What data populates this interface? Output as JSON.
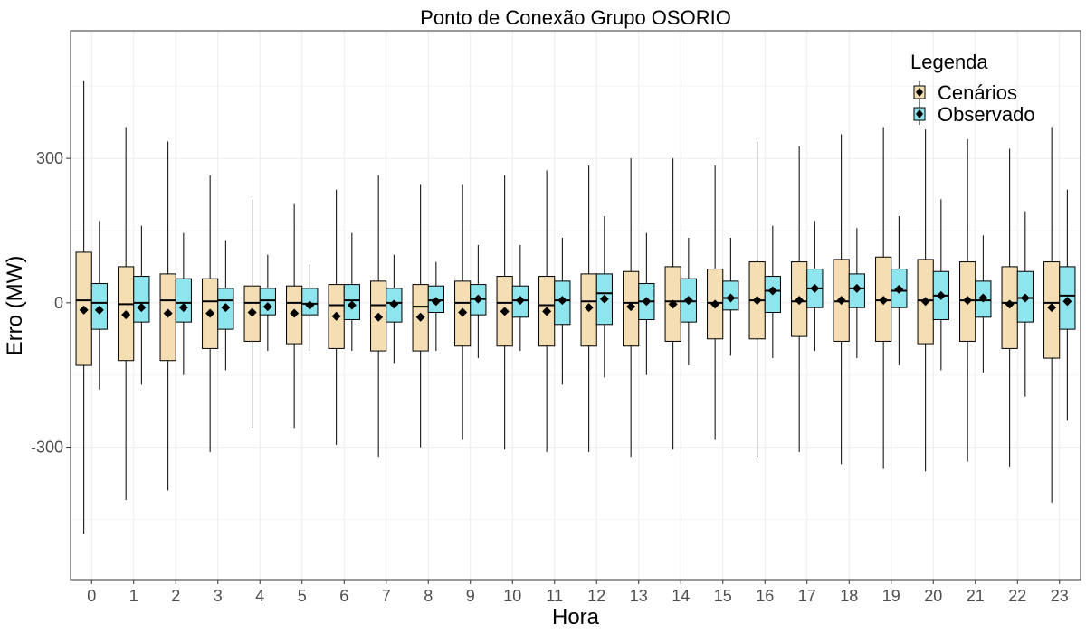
{
  "colors": {
    "Cenários": "#F5DEB3",
    "Observado": "#8EE5EE",
    "grid_major": "#ebebeb",
    "grid_minor": "#f5f5f5",
    "panel_border": "#333333"
  },
  "chart_data": {
    "type": "boxplot",
    "title": "Ponto de Conexão Grupo OSORIO",
    "xlabel": "Hora",
    "ylabel": "Erro (MW)",
    "ylim": [
      -575,
      565
    ],
    "yticks": [
      -300,
      0,
      300
    ],
    "grid": true,
    "legend": {
      "title": "Legenda",
      "position": "top-right",
      "entries": [
        "Cenários",
        "Observado"
      ]
    },
    "categories": [
      "0",
      "1",
      "2",
      "3",
      "4",
      "5",
      "6",
      "7",
      "8",
      "9",
      "10",
      "11",
      "12",
      "13",
      "14",
      "15",
      "16",
      "17",
      "18",
      "19",
      "20",
      "21",
      "22",
      "23"
    ],
    "series": [
      {
        "name": "Cenários",
        "whisker_low": [
          -480,
          -410,
          -390,
          -310,
          -260,
          -260,
          -295,
          -320,
          -300,
          -285,
          -305,
          -310,
          -310,
          -320,
          -305,
          -285,
          -320,
          -310,
          -335,
          -345,
          -350,
          -330,
          -340,
          -415
        ],
        "q1": [
          -130,
          -120,
          -120,
          -95,
          -80,
          -85,
          -95,
          -100,
          -100,
          -90,
          -90,
          -90,
          -90,
          -90,
          -80,
          -75,
          -75,
          -70,
          -80,
          -80,
          -85,
          -80,
          -95,
          -115
        ],
        "median": [
          5,
          -3,
          5,
          3,
          0,
          0,
          -5,
          -5,
          -8,
          0,
          0,
          -5,
          3,
          0,
          3,
          0,
          5,
          3,
          3,
          5,
          5,
          5,
          0,
          0
        ],
        "q3": [
          105,
          75,
          60,
          50,
          35,
          35,
          38,
          45,
          38,
          45,
          55,
          55,
          60,
          65,
          75,
          70,
          85,
          85,
          90,
          95,
          90,
          85,
          75,
          85
        ],
        "whisker_high": [
          460,
          365,
          335,
          265,
          215,
          205,
          235,
          265,
          245,
          245,
          265,
          275,
          285,
          300,
          300,
          285,
          335,
          325,
          350,
          365,
          360,
          340,
          320,
          365
        ],
        "mean": [
          -15,
          -25,
          -22,
          -22,
          -20,
          -22,
          -28,
          -30,
          -30,
          -20,
          -18,
          -18,
          -10,
          -8,
          -3,
          -3,
          5,
          5,
          5,
          5,
          3,
          5,
          -3,
          -10
        ]
      },
      {
        "name": "Observado",
        "whisker_low": [
          -180,
          -170,
          -150,
          -140,
          -100,
          -100,
          -100,
          -125,
          -100,
          -115,
          -100,
          -170,
          -155,
          -150,
          -130,
          -110,
          -115,
          -100,
          -115,
          -130,
          -140,
          -145,
          -195,
          -245
        ],
        "q1": [
          -55,
          -40,
          -40,
          -55,
          -25,
          -25,
          -35,
          -40,
          -20,
          -25,
          -30,
          -45,
          -45,
          -35,
          -40,
          -15,
          -20,
          -10,
          -10,
          -10,
          -35,
          -30,
          -40,
          -55
        ],
        "median": [
          0,
          0,
          0,
          5,
          5,
          -2,
          5,
          0,
          5,
          8,
          5,
          5,
          20,
          3,
          3,
          10,
          25,
          30,
          30,
          25,
          15,
          5,
          10,
          15
        ],
        "q3": [
          40,
          55,
          50,
          30,
          30,
          30,
          38,
          30,
          35,
          38,
          35,
          45,
          60,
          40,
          50,
          45,
          55,
          70,
          60,
          70,
          65,
          45,
          65,
          75
        ],
        "whisker_high": [
          170,
          160,
          145,
          130,
          100,
          80,
          145,
          100,
          85,
          120,
          120,
          135,
          180,
          145,
          135,
          135,
          160,
          170,
          155,
          180,
          215,
          140,
          190,
          235
        ],
        "mean": [
          -15,
          -10,
          -10,
          -10,
          -8,
          -5,
          -5,
          -3,
          3,
          8,
          5,
          5,
          8,
          3,
          5,
          10,
          25,
          30,
          30,
          28,
          15,
          10,
          10,
          3
        ]
      }
    ]
  }
}
